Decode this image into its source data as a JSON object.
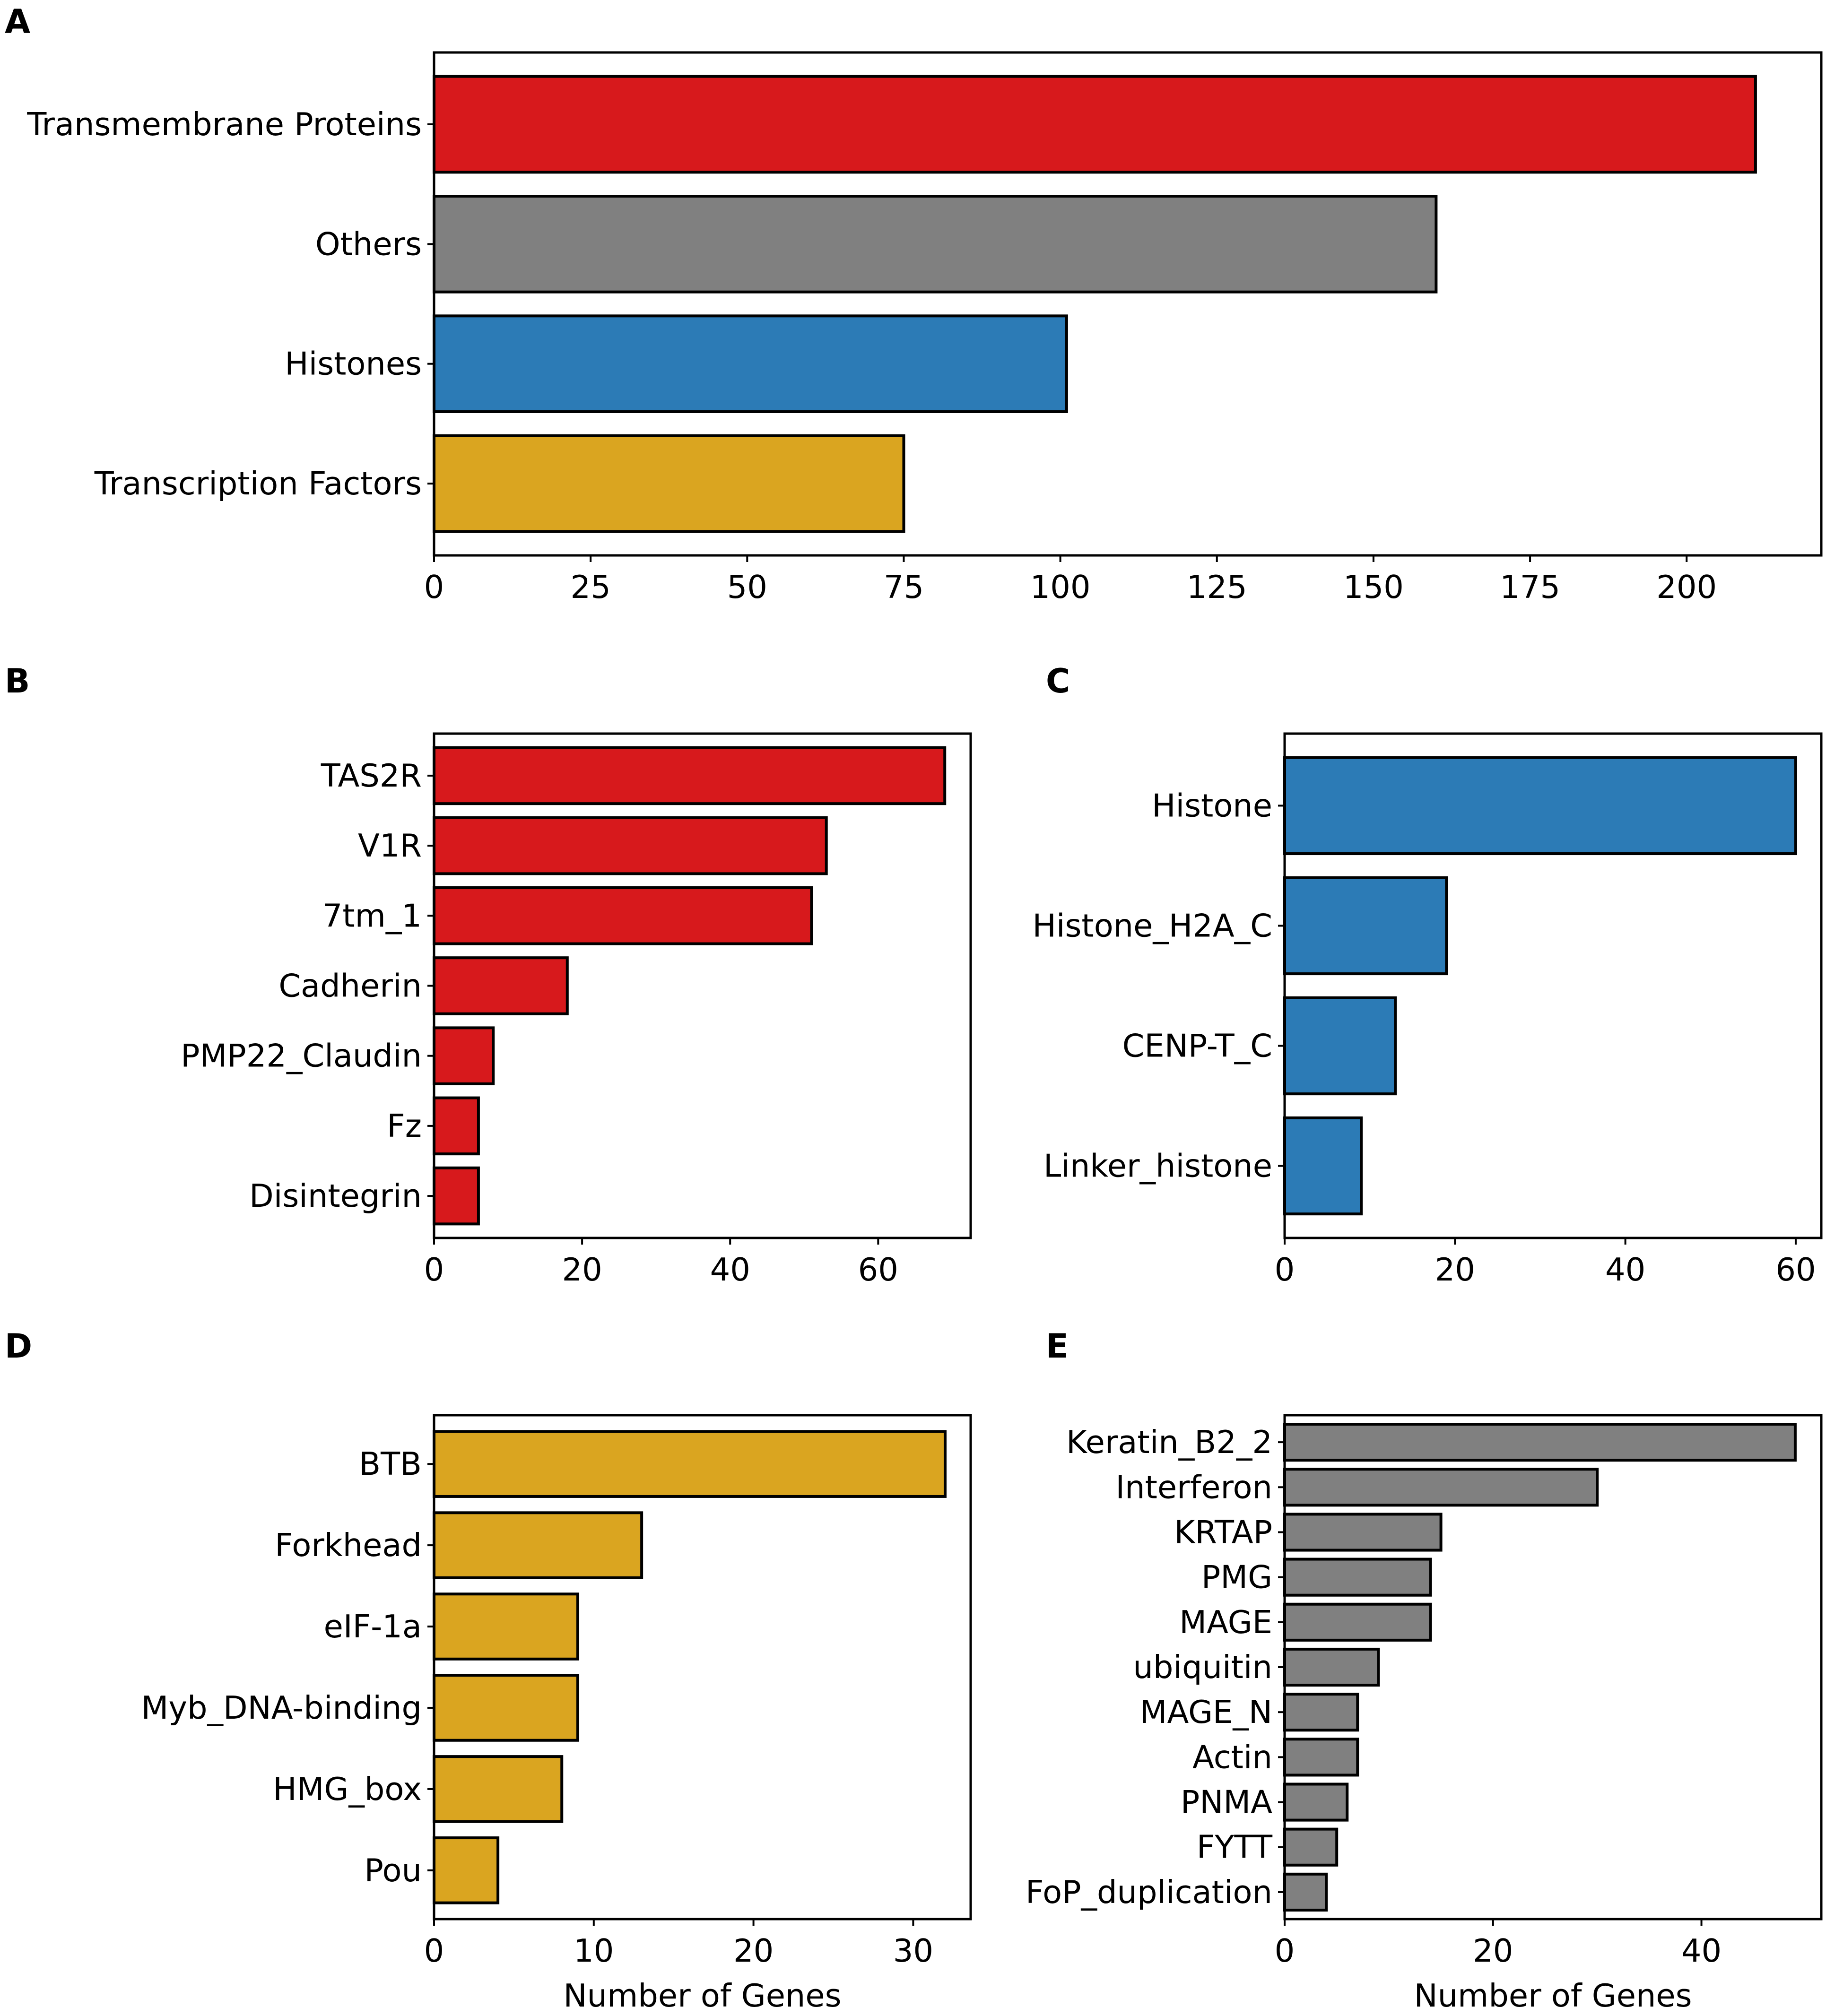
{
  "colors": {
    "transmembrane": "#d7191c",
    "others": "#808080",
    "histones": "#2c7bb6",
    "transcription_factors": "#daa520"
  },
  "chart_data": [
    {
      "panel": "A",
      "type": "bar",
      "orientation": "horizontal",
      "categories": [
        "Transmembrane Proteins",
        "Others",
        "Histones",
        "Transcription Factors"
      ],
      "values": [
        211,
        160,
        101,
        75
      ],
      "bar_colors": [
        "#d7191c",
        "#808080",
        "#2c7bb6",
        "#daa520"
      ],
      "xticks": [
        0,
        25,
        50,
        75,
        100,
        125,
        150,
        175,
        200
      ],
      "xlim": [
        0,
        221.5
      ],
      "xlabel": "",
      "ylabel": ""
    },
    {
      "panel": "B",
      "type": "bar",
      "orientation": "horizontal",
      "categories": [
        "TAS2R",
        "V1R",
        "7tm_1",
        "Cadherin",
        "PMP22_Claudin",
        "Fz",
        "Disintegrin"
      ],
      "values": [
        69,
        53,
        51,
        18,
        8,
        6,
        6
      ],
      "bar_colors": [
        "#d7191c"
      ],
      "xticks": [
        0,
        20,
        40,
        60
      ],
      "xlim": [
        0,
        72.5
      ],
      "xlabel": "",
      "ylabel": ""
    },
    {
      "panel": "C",
      "type": "bar",
      "orientation": "horizontal",
      "categories": [
        "Histone",
        "Histone_H2A_C",
        "CENP-T_C",
        "Linker_histone"
      ],
      "values": [
        60,
        19,
        13,
        9
      ],
      "bar_colors": [
        "#2c7bb6"
      ],
      "xticks": [
        0,
        20,
        40,
        60
      ],
      "xlim": [
        0,
        63
      ],
      "xlabel": "",
      "ylabel": ""
    },
    {
      "panel": "D",
      "type": "bar",
      "orientation": "horizontal",
      "categories": [
        "BTB",
        "Forkhead",
        "eIF-1a",
        "Myb_DNA-binding",
        "HMG_box",
        "Pou"
      ],
      "values": [
        32,
        13,
        9,
        9,
        8,
        4
      ],
      "bar_colors": [
        "#daa520"
      ],
      "xticks": [
        0,
        10,
        20,
        30
      ],
      "xlim": [
        0,
        33.6
      ],
      "xlabel": "Number of Genes",
      "ylabel": ""
    },
    {
      "panel": "E",
      "type": "bar",
      "orientation": "horizontal",
      "categories": [
        "Keratin_B2_2",
        "Interferon",
        "KRTAP",
        "PMG",
        "MAGE",
        "ubiquitin",
        "MAGE_N",
        "Actin",
        "PNMA",
        "FYTT",
        "FoP_duplication"
      ],
      "values": [
        49,
        30,
        15,
        14,
        14,
        9,
        7,
        7,
        6,
        5,
        4
      ],
      "bar_colors": [
        "#808080"
      ],
      "xticks": [
        0,
        20,
        40
      ],
      "xlim": [
        0,
        51.5
      ],
      "xlabel": "Number of Genes",
      "ylabel": ""
    }
  ]
}
